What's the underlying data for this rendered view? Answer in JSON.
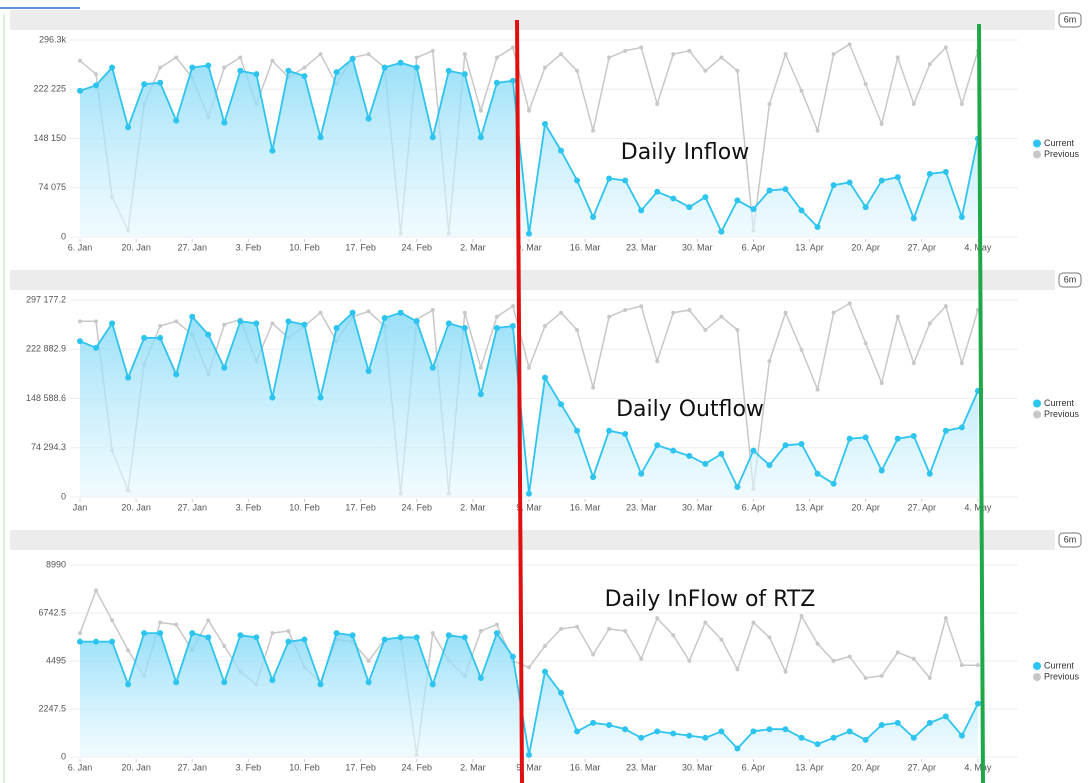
{
  "chart_data": [
    {
      "type": "line",
      "title": "Daily Inflow",
      "range_label": "6m",
      "x": [
        0,
        2,
        4,
        6,
        8,
        10,
        12,
        14,
        16,
        18,
        20,
        22,
        24,
        26,
        28,
        30,
        32,
        34,
        36,
        38,
        40,
        42,
        44,
        46,
        48,
        50,
        52,
        54,
        56,
        58,
        60,
        62,
        64,
        66,
        68,
        70,
        72,
        74,
        76,
        78,
        80,
        82,
        84,
        86,
        88,
        90,
        92,
        94,
        96,
        98,
        100,
        102,
        104,
        106,
        108,
        110,
        112
      ],
      "xlim": [
        0,
        117
      ],
      "xticks": [
        {
          "value": 0,
          "label": "6. Jan"
        },
        {
          "value": 7,
          "label": "20. Jan"
        },
        {
          "value": 14,
          "label": "27. Jan"
        },
        {
          "value": 21,
          "label": "3. Feb"
        },
        {
          "value": 28,
          "label": "10. Feb"
        },
        {
          "value": 35,
          "label": "17. Feb"
        },
        {
          "value": 42,
          "label": "24. Feb"
        },
        {
          "value": 49,
          "label": "2. Mar"
        },
        {
          "value": 56,
          "label": "9. Mar"
        },
        {
          "value": 63,
          "label": "16. Mar"
        },
        {
          "value": 70,
          "label": "23. Mar"
        },
        {
          "value": 77,
          "label": "30. Mar"
        },
        {
          "value": 84,
          "label": "6. Apr"
        },
        {
          "value": 91,
          "label": "13. Apr"
        },
        {
          "value": 98,
          "label": "20. Apr"
        },
        {
          "value": 105,
          "label": "27. Apr"
        },
        {
          "value": 112,
          "label": "4. May"
        }
      ],
      "ylim": [
        0,
        296300
      ],
      "yticks": [
        0,
        {
          "value": 74075,
          "label": "74 075"
        },
        {
          "value": 148150,
          "label": "148 150"
        },
        {
          "value": 222225,
          "label": "222 225"
        },
        {
          "value": 296300,
          "label": "296.3k"
        }
      ],
      "grid": true,
      "legend": "right",
      "series": [
        {
          "name": "Current",
          "color": "#2ec4f0",
          "values": [
            220000,
            228000,
            255000,
            165000,
            230000,
            232000,
            175000,
            255000,
            258000,
            172000,
            250000,
            245000,
            130000,
            250000,
            242000,
            150000,
            248000,
            268000,
            178000,
            255000,
            262000,
            255000,
            150000,
            250000,
            245000,
            150000,
            232000,
            235000,
            5000,
            170000,
            130000,
            85000,
            30000,
            88000,
            85000,
            40000,
            68000,
            58000,
            45000,
            60000,
            8000,
            55000,
            42000,
            70000,
            72000,
            40000,
            15000,
            78000,
            82000,
            45000,
            85000,
            90000,
            28000,
            95000,
            98000,
            30000,
            148000
          ]
        },
        {
          "name": "Previous",
          "color": "#c8c8c8",
          "values": [
            265000,
            245000,
            60000,
            10000,
            200000,
            255000,
            270000,
            240000,
            180000,
            255000,
            270000,
            200000,
            265000,
            240000,
            255000,
            275000,
            230000,
            270000,
            275000,
            255000,
            5000,
            270000,
            280000,
            5000,
            275000,
            190000,
            270000,
            285000,
            190000,
            255000,
            275000,
            250000,
            160000,
            270000,
            280000,
            285000,
            200000,
            275000,
            280000,
            250000,
            270000,
            250000,
            10000,
            200000,
            275000,
            220000,
            160000,
            275000,
            290000,
            230000,
            170000,
            270000,
            200000,
            260000,
            285000,
            200000,
            280000
          ]
        }
      ]
    },
    {
      "type": "line",
      "title": "Daily Outflow",
      "range_label": "6m",
      "x": [
        0,
        2,
        4,
        6,
        8,
        10,
        12,
        14,
        16,
        18,
        20,
        22,
        24,
        26,
        28,
        30,
        32,
        34,
        36,
        38,
        40,
        42,
        44,
        46,
        48,
        50,
        52,
        54,
        56,
        58,
        60,
        62,
        64,
        66,
        68,
        70,
        72,
        74,
        76,
        78,
        80,
        82,
        84,
        86,
        88,
        90,
        92,
        94,
        96,
        98,
        100,
        102,
        104,
        106,
        108,
        110,
        112
      ],
      "xlim": [
        0,
        117
      ],
      "xticks": [
        {
          "value": 0,
          "label": "Jan"
        },
        {
          "value": 7,
          "label": "20. Jan"
        },
        {
          "value": 14,
          "label": "27. Jan"
        },
        {
          "value": 21,
          "label": "3. Feb"
        },
        {
          "value": 28,
          "label": "10. Feb"
        },
        {
          "value": 35,
          "label": "17. Feb"
        },
        {
          "value": 42,
          "label": "24. Feb"
        },
        {
          "value": 49,
          "label": "2. Mar"
        },
        {
          "value": 56,
          "label": "9. Mar"
        },
        {
          "value": 63,
          "label": "16. Mar"
        },
        {
          "value": 70,
          "label": "23. Mar"
        },
        {
          "value": 77,
          "label": "30. Mar"
        },
        {
          "value": 84,
          "label": "6. Apr"
        },
        {
          "value": 91,
          "label": "13. Apr"
        },
        {
          "value": 98,
          "label": "20. Apr"
        },
        {
          "value": 105,
          "label": "27. Apr"
        },
        {
          "value": 112,
          "label": "4. May"
        }
      ],
      "ylim": [
        0,
        297177.2
      ],
      "yticks": [
        0,
        {
          "value": 74294.3,
          "label": "74 294.3"
        },
        {
          "value": 148588.6,
          "label": "148 588.6"
        },
        {
          "value": 222882.9,
          "label": "222 882.9"
        },
        {
          "value": 297177.2,
          "label": "297 177.2"
        }
      ],
      "grid": true,
      "legend": "right",
      "series": [
        {
          "name": "Current",
          "color": "#2ec4f0",
          "values": [
            235000,
            225000,
            262000,
            180000,
            240000,
            240000,
            185000,
            272000,
            245000,
            195000,
            265000,
            262000,
            150000,
            265000,
            260000,
            150000,
            255000,
            278000,
            190000,
            270000,
            278000,
            265000,
            195000,
            262000,
            255000,
            155000,
            255000,
            258000,
            5000,
            180000,
            140000,
            100000,
            30000,
            100000,
            95000,
            35000,
            78000,
            70000,
            62000,
            50000,
            65000,
            15000,
            70000,
            48000,
            78000,
            80000,
            35000,
            20000,
            88000,
            90000,
            40000,
            88000,
            92000,
            35000,
            100000,
            105000,
            160000
          ]
        },
        {
          "name": "Previous",
          "color": "#c8c8c8",
          "values": [
            265000,
            265000,
            70000,
            10000,
            200000,
            258000,
            265000,
            245000,
            185000,
            260000,
            268000,
            205000,
            262000,
            240000,
            258000,
            278000,
            235000,
            272000,
            280000,
            258000,
            5000,
            268000,
            282000,
            5000,
            278000,
            195000,
            272000,
            288000,
            195000,
            258000,
            278000,
            252000,
            165000,
            272000,
            282000,
            288000,
            205000,
            278000,
            282000,
            252000,
            272000,
            252000,
            12000,
            205000,
            278000,
            222000,
            162000,
            278000,
            292000,
            232000,
            172000,
            272000,
            202000,
            262000,
            288000,
            202000,
            282000
          ]
        }
      ]
    },
    {
      "type": "line",
      "title": "Daily InFlow of RTZ",
      "range_label": "6m",
      "x": [
        0,
        2,
        4,
        6,
        8,
        10,
        12,
        14,
        16,
        18,
        20,
        22,
        24,
        26,
        28,
        30,
        32,
        34,
        36,
        38,
        40,
        42,
        44,
        46,
        48,
        50,
        52,
        54,
        56,
        58,
        60,
        62,
        64,
        66,
        68,
        70,
        72,
        74,
        76,
        78,
        80,
        82,
        84,
        86,
        88,
        90,
        92,
        94,
        96,
        98,
        100,
        102,
        104,
        106,
        108,
        110,
        112
      ],
      "xlim": [
        0,
        117
      ],
      "xticks": [
        {
          "value": 0,
          "label": "6. Jan"
        },
        {
          "value": 7,
          "label": "20. Jan"
        },
        {
          "value": 14,
          "label": "27. Jan"
        },
        {
          "value": 21,
          "label": "3. Feb"
        },
        {
          "value": 28,
          "label": "10. Feb"
        },
        {
          "value": 35,
          "label": "17. Feb"
        },
        {
          "value": 42,
          "label": "24. Feb"
        },
        {
          "value": 49,
          "label": "2. Mar"
        },
        {
          "value": 56,
          "label": "9. Mar"
        },
        {
          "value": 63,
          "label": "16. Mar"
        },
        {
          "value": 70,
          "label": "23. Mar"
        },
        {
          "value": 77,
          "label": "30. Mar"
        },
        {
          "value": 84,
          "label": "6. Apr"
        },
        {
          "value": 91,
          "label": "13. Apr"
        },
        {
          "value": 98,
          "label": "20. Apr"
        },
        {
          "value": 105,
          "label": "27. Apr"
        },
        {
          "value": 112,
          "label": "4. May"
        }
      ],
      "ylim": [
        0,
        8990
      ],
      "yticks": [
        0,
        2247.5,
        4495,
        6742.5,
        8990
      ],
      "grid": true,
      "legend": "right",
      "series": [
        {
          "name": "Current",
          "color": "#2ec4f0",
          "values": [
            5400,
            5400,
            5400,
            3400,
            5800,
            5800,
            3500,
            5800,
            5600,
            3500,
            5700,
            5600,
            3600,
            5400,
            5500,
            3400,
            5800,
            5700,
            3500,
            5500,
            5600,
            5600,
            3400,
            5700,
            5600,
            3700,
            5800,
            4700,
            100,
            4000,
            3000,
            1200,
            1600,
            1500,
            1300,
            900,
            1200,
            1100,
            1000,
            900,
            1200,
            400,
            1200,
            1300,
            1300,
            900,
            600,
            900,
            1200,
            800,
            1500,
            1600,
            900,
            1600,
            1900,
            1000,
            2500
          ]
        },
        {
          "name": "Previous",
          "color": "#c8c8c8",
          "values": [
            5800,
            7800,
            6400,
            5000,
            3800,
            6300,
            6200,
            5000,
            6400,
            5200,
            4000,
            3400,
            5800,
            5900,
            4200,
            3500,
            5500,
            5400,
            4500,
            5500,
            5600,
            100,
            5800,
            4500,
            3800,
            5900,
            6200,
            4500,
            4200,
            5200,
            6000,
            6100,
            4800,
            6000,
            5900,
            4600,
            6500,
            5700,
            4500,
            6300,
            5500,
            4100,
            6300,
            5600,
            4000,
            6600,
            5300,
            4500,
            4700,
            3700,
            3800,
            4900,
            4600,
            3700,
            6500,
            4300,
            4300
          ]
        }
      ]
    }
  ]
}
